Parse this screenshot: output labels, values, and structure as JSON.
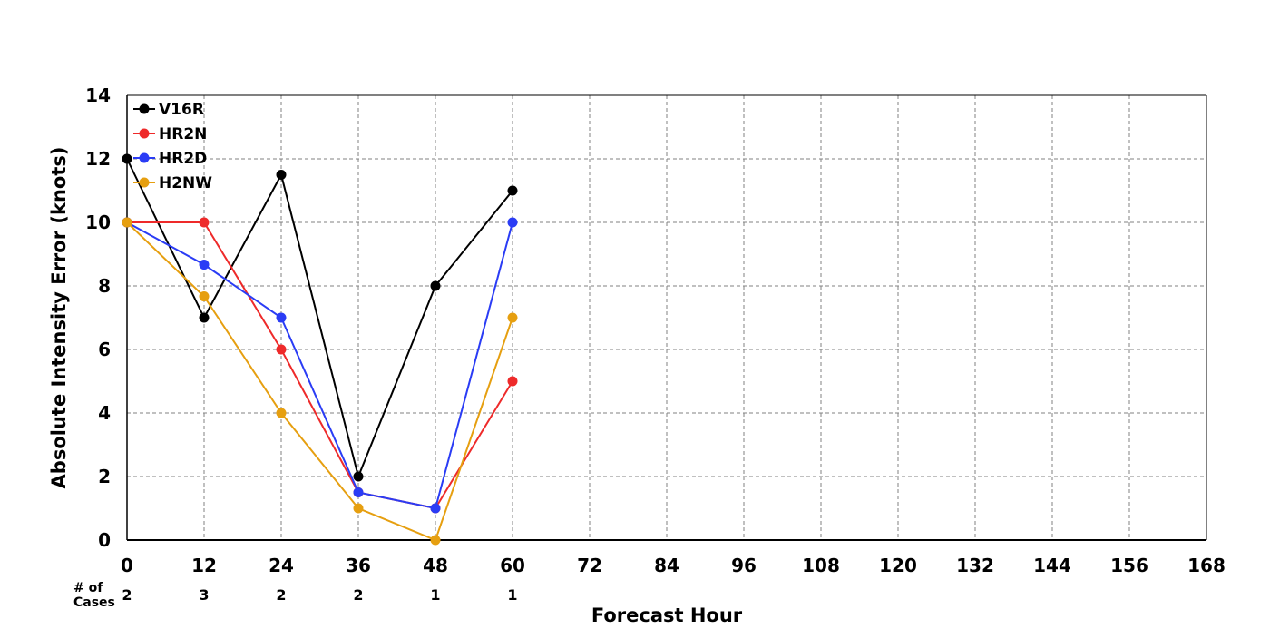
{
  "chart_data": {
    "type": "line",
    "xlabel": "Forecast Hour",
    "ylabel": "Absolute Intensity Error (knots)",
    "xlim": [
      0,
      168
    ],
    "ylim": [
      0,
      14
    ],
    "x_ticks": [
      "0",
      "12",
      "24",
      "36",
      "48",
      "60",
      "72",
      "84",
      "96",
      "108",
      "120",
      "132",
      "144",
      "156",
      "168"
    ],
    "y_ticks": [
      "0",
      "2",
      "4",
      "6",
      "8",
      "10",
      "12",
      "14"
    ],
    "grid": true,
    "legend_position": "top-left",
    "x": [
      0,
      12,
      24,
      36,
      48,
      60
    ],
    "series": [
      {
        "name": "V16R",
        "color": "#000000",
        "values": [
          12,
          7,
          11.5,
          2,
          8,
          11
        ]
      },
      {
        "name": "HR2N",
        "color": "#ee2a2a",
        "values": [
          10,
          10,
          6,
          1.5,
          1,
          5
        ]
      },
      {
        "name": "HR2D",
        "color": "#2a3cf5",
        "values": [
          10,
          8.67,
          7,
          1.5,
          1,
          10
        ]
      },
      {
        "name": "H2NW",
        "color": "#e69f10",
        "values": [
          10,
          7.67,
          4,
          1,
          0,
          7
        ]
      }
    ],
    "cases": {
      "label_line1": "# of",
      "label_line2": "Cases",
      "hours": [
        0,
        12,
        24,
        36,
        48,
        60
      ],
      "counts": [
        "2",
        "3",
        "2",
        "2",
        "1",
        "1"
      ]
    }
  }
}
